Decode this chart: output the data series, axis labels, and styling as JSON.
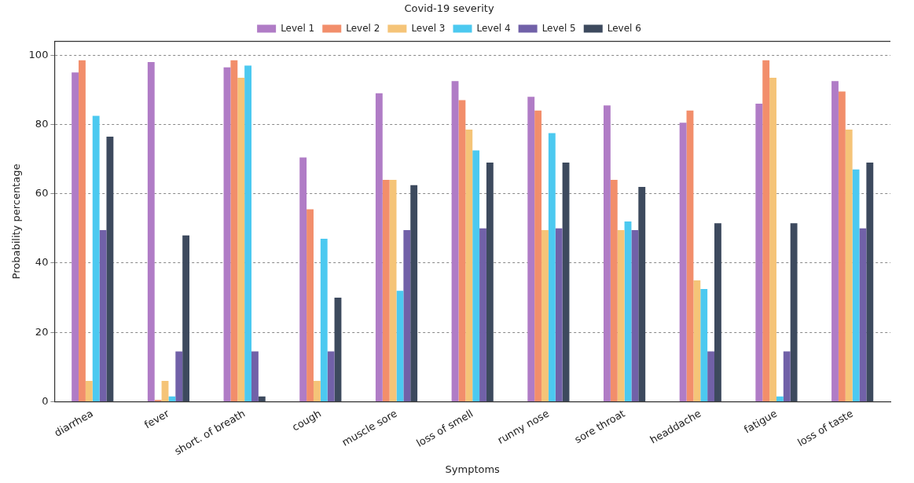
{
  "chart_data": {
    "type": "bar",
    "xlabel": "Symptoms",
    "ylabel": "Probability percentage",
    "legend_title": "Covid-19 severity",
    "categories": [
      "diarrhea",
      "fever",
      "short. of breath",
      "cough",
      "muscle sore",
      "loss of smell",
      "runny nose",
      "sore throat",
      "headdache",
      "fatigue",
      "loss of taste"
    ],
    "series": [
      {
        "name": "Level 1",
        "color": "#b07cc6",
        "values": [
          95,
          98,
          96.5,
          70.5,
          89,
          92.5,
          88,
          85.5,
          80.5,
          86,
          92.5
        ]
      },
      {
        "name": "Level 2",
        "color": "#f28e6b",
        "values": [
          98.5,
          0.5,
          98.5,
          55.5,
          64,
          87,
          84,
          64,
          84,
          98.5,
          89.5
        ]
      },
      {
        "name": "Level 3",
        "color": "#f5c478",
        "values": [
          6,
          6,
          93.5,
          6,
          64,
          78.5,
          49.5,
          49.5,
          35,
          93.5,
          78.5
        ]
      },
      {
        "name": "Level 4",
        "color": "#4cc9f0",
        "values": [
          82.5,
          1.5,
          97,
          47,
          32,
          72.5,
          77.5,
          52,
          32.5,
          1.5,
          67
        ]
      },
      {
        "name": "Level 5",
        "color": "#7161a8",
        "values": [
          49.5,
          14.5,
          14.5,
          14.5,
          49.5,
          50,
          50,
          49.5,
          14.5,
          14.5,
          50
        ]
      },
      {
        "name": "Level 6",
        "color": "#3d4a5e",
        "values": [
          76.5,
          48,
          1.5,
          30,
          62.5,
          69,
          69,
          62,
          51.5,
          51.5,
          69
        ]
      }
    ],
    "ylim": [
      0,
      104
    ],
    "yticks": [
      0,
      20,
      40,
      60,
      80,
      100
    ],
    "grid": "y",
    "legend": "top"
  }
}
